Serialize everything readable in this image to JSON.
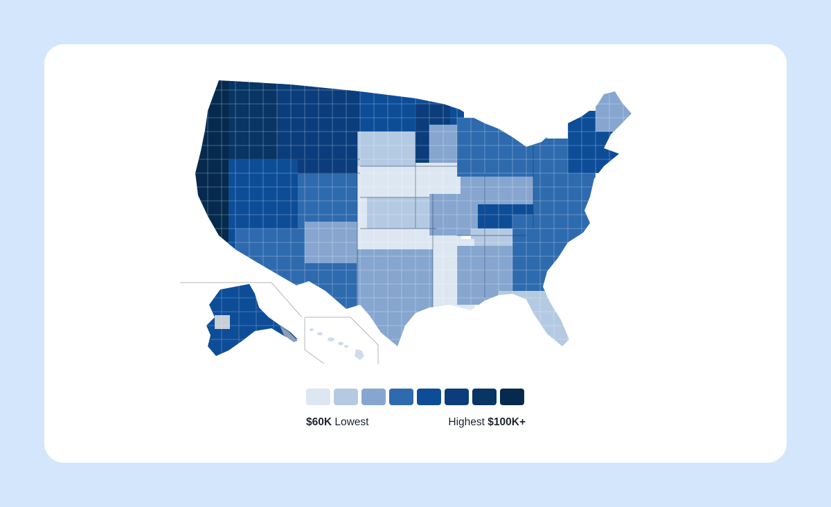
{
  "legend": {
    "colors": [
      "#dde7f2",
      "#b4cae3",
      "#86a6d0",
      "#2e6aae",
      "#0d4d98",
      "#0b3d7c",
      "#073564",
      "#052a4e"
    ],
    "low_value": "$60K",
    "low_text": "Lowest",
    "high_text": "Highest",
    "high_value": "$100K+"
  },
  "map": {
    "regions": [
      {
        "name": "pacific-coast",
        "level": 7
      },
      {
        "name": "northwest",
        "level": 6
      },
      {
        "name": "northern-plains-west",
        "level": 5
      },
      {
        "name": "north-central",
        "level": 4
      },
      {
        "name": "great-basin",
        "level": 4
      },
      {
        "name": "mountain-south",
        "level": 4
      },
      {
        "name": "desert-southwest",
        "level": 6
      },
      {
        "name": "southwest-plains",
        "level": 2
      },
      {
        "name": "south-central",
        "level": 0
      },
      {
        "name": "texas",
        "level": 2
      },
      {
        "name": "lower-mississippi",
        "level": 1
      },
      {
        "name": "midwest",
        "level": 2
      },
      {
        "name": "great-lakes-north",
        "level": 3
      },
      {
        "name": "appalachia",
        "level": 1
      },
      {
        "name": "kentucky",
        "level": 4
      },
      {
        "name": "carolinas",
        "level": 3
      },
      {
        "name": "southeast",
        "level": 2
      },
      {
        "name": "florida",
        "level": 1
      },
      {
        "name": "mid-atlantic",
        "level": 3
      },
      {
        "name": "new-england",
        "level": 4
      },
      {
        "name": "maine",
        "level": 2
      },
      {
        "name": "alaska",
        "level": 4
      },
      {
        "name": "hawaii",
        "level": 1
      }
    ]
  }
}
